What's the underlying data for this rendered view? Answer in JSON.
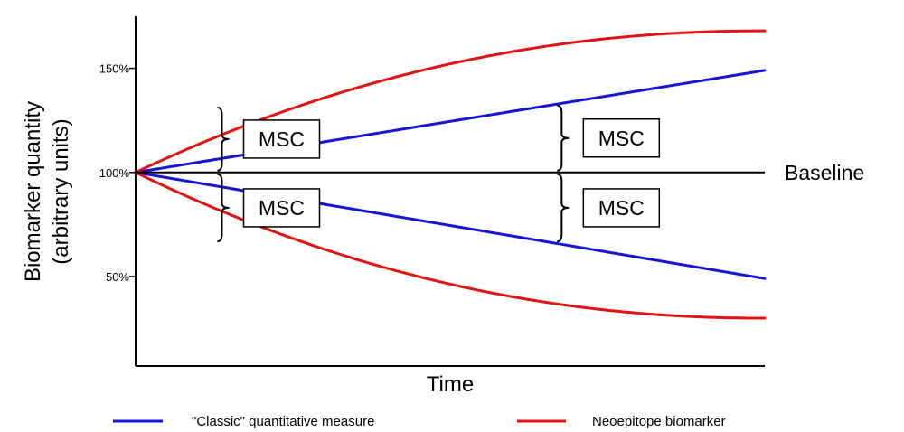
{
  "chart_data": {
    "type": "line",
    "xlabel": "Time",
    "ylabel_line1": "Biomarker quantity",
    "ylabel_line2": "(arbitrary units)",
    "y_ticks": [
      {
        "value": 150,
        "label": "150%"
      },
      {
        "value": 100,
        "label": "100%"
      },
      {
        "value": 50,
        "label": "50%"
      }
    ],
    "xlim": [
      0,
      10
    ],
    "ylim": [
      7,
      175
    ],
    "baseline": {
      "value": 100,
      "label": "Baseline"
    },
    "series": [
      {
        "name": "\"Classic\" quantitative measure",
        "color": "#1515d6",
        "shape": "linear",
        "direction": "up",
        "start": 100,
        "end": 149
      },
      {
        "name": "\"Classic\" quantitative measure",
        "color": "#1515d6",
        "shape": "linear",
        "direction": "down",
        "start": 100,
        "end": 49
      },
      {
        "name": "Neoepitope biomarker",
        "color": "#e11414",
        "shape": "saturating",
        "direction": "up",
        "start": 100,
        "end": 168
      },
      {
        "name": "Neoepitope biomarker",
        "color": "#e11414",
        "shape": "saturating",
        "direction": "down",
        "start": 100,
        "end": 30
      }
    ],
    "annotations": [
      {
        "label": "MSC",
        "x": 1.3,
        "from": 100,
        "to": 132
      },
      {
        "label": "MSC",
        "x": 1.3,
        "from": 100,
        "to": 66
      },
      {
        "label": "MSC",
        "x": 6.7,
        "from": 100,
        "to": 133
      },
      {
        "label": "MSC",
        "x": 6.7,
        "from": 100,
        "to": 66
      }
    ],
    "legend": {
      "placement": "bottom",
      "entries": [
        {
          "label": "\"Classic\" quantitative measure",
          "color": "#1515d6"
        },
        {
          "label": "Neoepitope biomarker",
          "color": "#e11414"
        }
      ]
    },
    "grid": false
  }
}
